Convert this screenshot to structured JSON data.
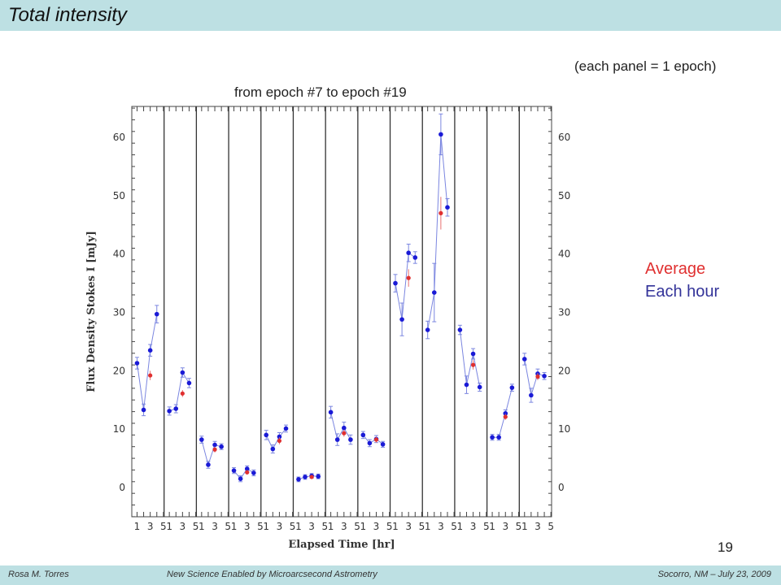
{
  "header": {
    "title": "Total intensity"
  },
  "note": "(each panel = 1 epoch)",
  "legend": {
    "average": "Average",
    "each_hour": "Each hour",
    "average_color": "#e03030",
    "each_hour_color": "#1a1ad6"
  },
  "page_number": "19",
  "footer": {
    "left": "Rosa M. Torres",
    "middle": "New Science Enabled by Microarcsecond Astrometry",
    "right": "Socorro, NM – July 23, 2009"
  },
  "chart_data": {
    "type": "scatter",
    "title": "from epoch #7 to epoch #19",
    "xlabel": "Elapsed Time [hr]",
    "ylabel": "Flux Density Stokes I [mJy]",
    "ylim": [
      -5,
      65
    ],
    "yticks": [
      0,
      10,
      20,
      30,
      40,
      50,
      60
    ],
    "xtick_labels": [
      "1",
      "3",
      "5"
    ],
    "grid": false,
    "panels": [
      {
        "hourly": [
          [
            1,
            21.3,
            1.0
          ],
          [
            2,
            13.3,
            1.0
          ],
          [
            3,
            23.5,
            1.0
          ],
          [
            4,
            29.7,
            1.5
          ]
        ],
        "average": [
          [
            3,
            19.2,
            0.8
          ]
        ]
      },
      {
        "hourly": [
          [
            1,
            13.1,
            0.7
          ],
          [
            2,
            13.5,
            0.7
          ],
          [
            3,
            19.7,
            0.8
          ],
          [
            4,
            17.9,
            0.8
          ]
        ],
        "average": [
          [
            3,
            16.1,
            0.6
          ]
        ]
      },
      {
        "hourly": [
          [
            1,
            8.2,
            0.6
          ],
          [
            2,
            3.9,
            0.6
          ],
          [
            3,
            7.3,
            0.6
          ],
          [
            4,
            7.0,
            0.5
          ]
        ],
        "average": [
          [
            3,
            6.5,
            0.5
          ]
        ]
      },
      {
        "hourly": [
          [
            1,
            2.9,
            0.5
          ],
          [
            2,
            1.5,
            0.5
          ],
          [
            3,
            3.2,
            0.5
          ],
          [
            4,
            2.5,
            0.5
          ]
        ],
        "average": [
          [
            3,
            2.6,
            0.4
          ]
        ]
      },
      {
        "hourly": [
          [
            1,
            9.0,
            0.8
          ],
          [
            2,
            6.6,
            0.7
          ],
          [
            3,
            8.7,
            0.7
          ],
          [
            4,
            10.1,
            0.6
          ]
        ],
        "average": [
          [
            3,
            8.0,
            0.6
          ]
        ]
      },
      {
        "hourly": [
          [
            1,
            1.4,
            0.4
          ],
          [
            2,
            1.8,
            0.4
          ],
          [
            3,
            2.0,
            0.4
          ],
          [
            4,
            1.9,
            0.4
          ]
        ],
        "average": [
          [
            3,
            1.8,
            0.3
          ]
        ]
      },
      {
        "hourly": [
          [
            1,
            12.9,
            1.0
          ],
          [
            2,
            8.2,
            1.0
          ],
          [
            3,
            10.2,
            1.0
          ],
          [
            4,
            8.2,
            0.8
          ]
        ],
        "average": [
          [
            3,
            9.3,
            0.6
          ]
        ]
      },
      {
        "hourly": [
          [
            1,
            9.0,
            0.6
          ],
          [
            2,
            7.6,
            0.6
          ],
          [
            3,
            8.3,
            0.6
          ],
          [
            4,
            7.4,
            0.5
          ]
        ],
        "average": [
          [
            3,
            8.2,
            0.5
          ]
        ]
      },
      {
        "hourly": [
          [
            1,
            35.0,
            1.5
          ],
          [
            2,
            28.8,
            2.8
          ],
          [
            3,
            40.2,
            1.5
          ],
          [
            4,
            39.4,
            1.0
          ]
        ],
        "average": [
          [
            3,
            35.9,
            1.5
          ]
        ]
      },
      {
        "hourly": [
          [
            1,
            27.0,
            1.5
          ],
          [
            2,
            33.4,
            5.0
          ],
          [
            3,
            60.5,
            3.5
          ],
          [
            4,
            48.0,
            1.5
          ]
        ],
        "average": [
          [
            3,
            47.0,
            2.8
          ]
        ]
      },
      {
        "hourly": [
          [
            1,
            27.0,
            0.8
          ],
          [
            2,
            17.6,
            1.5
          ],
          [
            3,
            22.9,
            0.9
          ],
          [
            4,
            17.2,
            0.7
          ]
        ],
        "average": [
          [
            3,
            21.0,
            0.8
          ]
        ]
      },
      {
        "hourly": [
          [
            1,
            8.6,
            0.5
          ],
          [
            2,
            8.6,
            0.5
          ],
          [
            3,
            12.7,
            0.6
          ],
          [
            4,
            17.1,
            0.6
          ]
        ],
        "average": [
          [
            3,
            12.1,
            0.5
          ]
        ]
      },
      {
        "hourly": [
          [
            1,
            22.0,
            1.0
          ],
          [
            2,
            15.8,
            1.2
          ],
          [
            3,
            19.5,
            0.8
          ],
          [
            4,
            19.1,
            0.6
          ]
        ],
        "average": [
          [
            3,
            19.0,
            0.6
          ]
        ]
      }
    ]
  }
}
